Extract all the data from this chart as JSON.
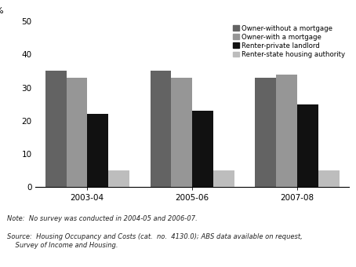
{
  "years": [
    "2003-04",
    "2005-06",
    "2007-08"
  ],
  "series": {
    "Owner-without a mortgage": [
      35,
      35,
      33
    ],
    "Owner-with a mortgage": [
      33,
      33,
      34
    ],
    "Renter-private landlord": [
      22,
      23,
      25
    ],
    "Renter-state housing authority": [
      5,
      5,
      5
    ]
  },
  "colors": {
    "Owner-without a mortgage": "#636363",
    "Owner-with a mortgage": "#969696",
    "Renter-private landlord": "#111111",
    "Renter-state housing authority": "#bdbdbd"
  },
  "ylabel": "%",
  "ylim": [
    0,
    50
  ],
  "yticks": [
    0,
    10,
    20,
    30,
    40,
    50
  ],
  "bar_width": 0.13,
  "note_line1": "Note:  No survey was conducted in 2004-05 and 2006-07.",
  "source_line1": "Source:  Housing Occupancy and Costs (cat.  no.  4130.0); ABS data available on request,",
  "source_line2": "    Survey of Income and Housing.",
  "legend_labels": [
    "Owner-without a mortgage",
    "Owner-with a mortgage",
    "Renter-private landlord",
    "Renter-state housing authority"
  ]
}
